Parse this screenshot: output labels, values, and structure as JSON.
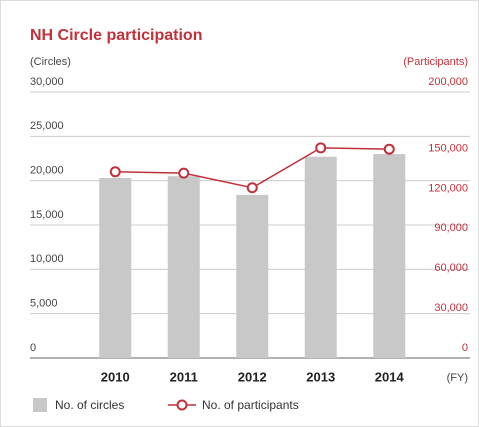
{
  "chart_data": {
    "type": "bar-line",
    "title": "NH Circle participation",
    "y_label": "(Circles)",
    "y2_label": "(Participants)",
    "x_label": "(FY)",
    "categories": [
      "2010",
      "2011",
      "2012",
      "2013",
      "2014"
    ],
    "series": [
      {
        "name": "No. of circles",
        "type": "bar",
        "color": "#c8c8c8",
        "values": [
          20300,
          20500,
          18400,
          22700,
          23000
        ]
      },
      {
        "name": "No. of participants",
        "type": "line",
        "axis": "y2",
        "color": "#c0313a",
        "values": [
          140000,
          139000,
          128000,
          158000,
          157000
        ]
      }
    ],
    "ylim": [
      0,
      30000
    ],
    "yticks": [
      {
        "value": 0,
        "label": "0"
      },
      {
        "value": 5000,
        "label": "5,000"
      },
      {
        "value": 10000,
        "label": "10,000"
      },
      {
        "value": 15000,
        "label": "15,000"
      },
      {
        "value": 20000,
        "label": "20,000"
      },
      {
        "value": 25000,
        "label": "25,000"
      },
      {
        "value": 30000,
        "label": "30,000"
      }
    ],
    "y2lim": [
      0,
      200000
    ],
    "y2ticks": [
      {
        "value": 0,
        "label": "0"
      },
      {
        "value": 30000,
        "label": "30,000"
      },
      {
        "value": 60000,
        "label": "60,000"
      },
      {
        "value": 90000,
        "label": "90,000"
      },
      {
        "value": 120000,
        "label": "120,000"
      },
      {
        "value": 150000,
        "label": "150,000"
      },
      {
        "value": 200000,
        "label": "200,000"
      }
    ],
    "grid": true
  }
}
